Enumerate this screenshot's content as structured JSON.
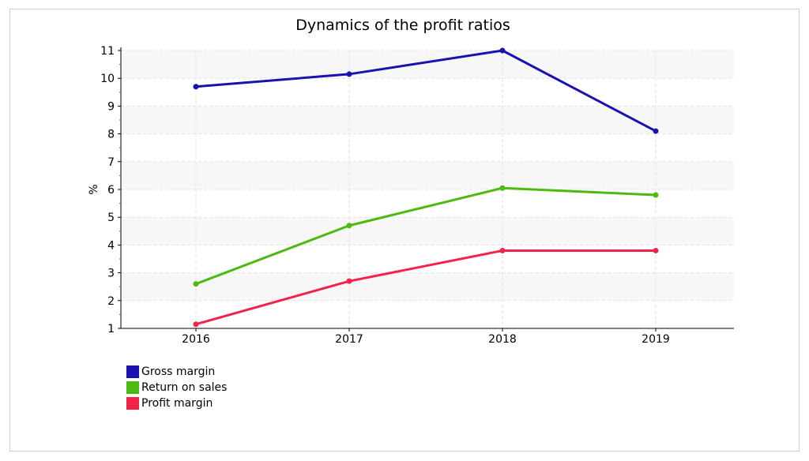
{
  "chart_data": {
    "type": "line",
    "title": "Dynamics of the profit ratios",
    "xlabel": "",
    "ylabel": "%",
    "categories": [
      "2016",
      "2017",
      "2018",
      "2019"
    ],
    "ylim": [
      1,
      11
    ],
    "yticks": [
      1,
      2,
      3,
      4,
      5,
      6,
      7,
      8,
      9,
      10,
      11
    ],
    "grid": true,
    "legend_position": "bottom-left",
    "series": [
      {
        "name": "Gross margin",
        "color": "#1a12b0",
        "values": [
          9.7,
          10.15,
          11.0,
          8.1
        ]
      },
      {
        "name": "Return on sales",
        "color": "#4cba0f",
        "values": [
          2.6,
          4.7,
          6.05,
          5.8
        ]
      },
      {
        "name": "Profit margin",
        "color": "#f0234a",
        "values": [
          1.15,
          2.7,
          3.8,
          3.8
        ]
      }
    ]
  }
}
